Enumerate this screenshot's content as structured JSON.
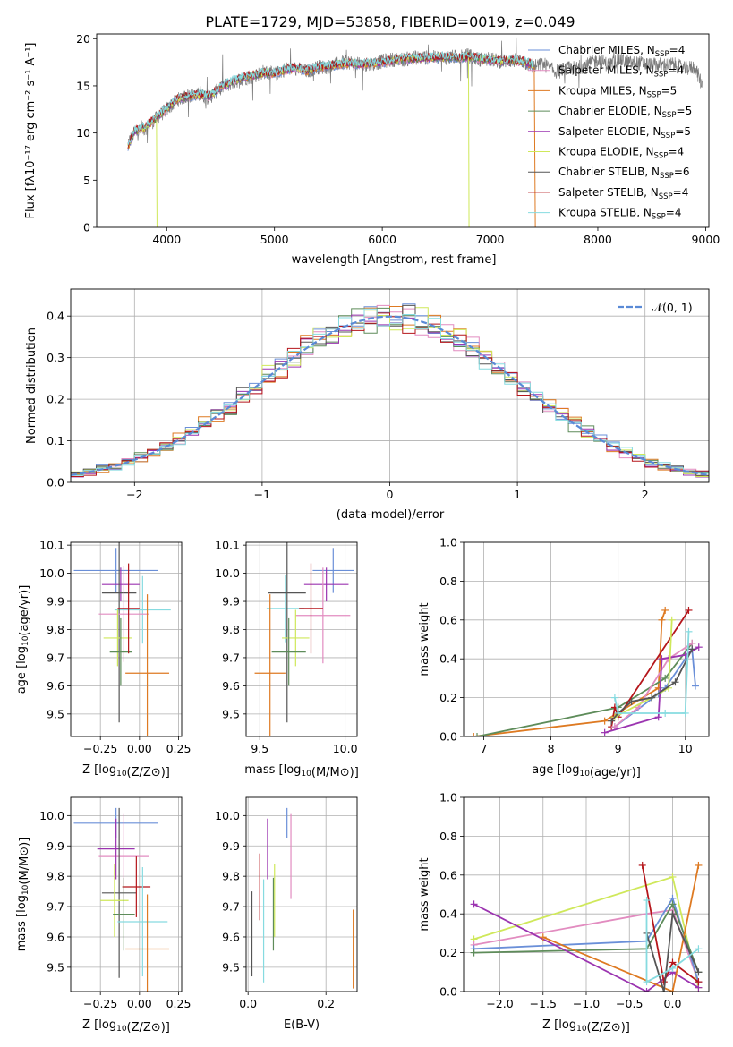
{
  "figure": {
    "title": "PLATE=1729, MJD=53858, FIBERID=0019, z=0.049"
  },
  "colors": {
    "Chabrier MILES": "#6a8fd8",
    "Salpeter MILES": "#e28cc0",
    "Kroupa MILES": "#de7a22",
    "Chabrier ELODIE": "#5e8c5a",
    "Salpeter ELODIE": "#9b34b0",
    "Kroupa ELODIE": "#cfe85a",
    "Chabrier STELIB": "#555555",
    "Salpeter STELIB": "#b5161b",
    "Kroupa STELIB": "#86dbe0"
  },
  "legend_entries": [
    {
      "model": "Chabrier MILES",
      "text": "Chabrier MILES, N",
      "sub": "SSP",
      "tail": "=4"
    },
    {
      "model": "Salpeter MILES",
      "text": "Salpeter MILES, N",
      "sub": "SSP",
      "tail": "=4"
    },
    {
      "model": "Kroupa MILES",
      "text": "Kroupa MILES, N",
      "sub": "SSP",
      "tail": "=5"
    },
    {
      "model": "Chabrier ELODIE",
      "text": "Chabrier ELODIE, N",
      "sub": "SSP",
      "tail": "=5"
    },
    {
      "model": "Salpeter ELODIE",
      "text": "Salpeter ELODIE, N",
      "sub": "SSP",
      "tail": "=5"
    },
    {
      "model": "Kroupa ELODIE",
      "text": "Kroupa ELODIE, N",
      "sub": "SSP",
      "tail": "=4"
    },
    {
      "model": "Chabrier STELIB",
      "text": "Chabrier STELIB, N",
      "sub": "SSP",
      "tail": "=6"
    },
    {
      "model": "Salpeter STELIB",
      "text": "Salpeter STELIB, N",
      "sub": "SSP",
      "tail": "=4"
    },
    {
      "model": "Kroupa STELIB",
      "text": "Kroupa STELIB, N",
      "sub": "SSP",
      "tail": "=4"
    }
  ],
  "chart_data": [
    {
      "id": "spectrum",
      "type": "line",
      "xlabel": "wavelength [Angstrom, rest frame]",
      "ylabel": "Flux [fλ10⁻¹⁷ erg cm⁻² s⁻¹ A⁻¹]",
      "xlim": [
        3350,
        9030
      ],
      "ylim": [
        0,
        20.5
      ],
      "xticks": [
        4000,
        5000,
        6000,
        7000,
        8000,
        9000
      ],
      "yticks": [
        0,
        5,
        10,
        15,
        20
      ],
      "grid": false,
      "legend_position": "top-right",
      "observed": {
        "name": "data",
        "x": [
          3640,
          3700,
          3800,
          3900,
          4000,
          4100,
          4200,
          4300,
          4400,
          4500,
          4600,
          4700,
          4800,
          4900,
          5000,
          5100,
          5200,
          5300,
          5400,
          5500,
          5600,
          5700,
          5800,
          5900,
          6000,
          6100,
          6200,
          6300,
          6400,
          6500,
          6600,
          6700,
          6800,
          6900,
          7000,
          7100,
          7200,
          7300,
          7400,
          7500,
          7600,
          7700,
          7800,
          7900,
          8000,
          8100,
          8200,
          8300,
          8400,
          8500,
          8600,
          8700,
          8800,
          8900,
          8970
        ],
        "y": [
          9.0,
          10.0,
          10.5,
          11.5,
          12.5,
          13.5,
          14.0,
          14.0,
          13.8,
          14.8,
          15.3,
          15.8,
          16.0,
          16.5,
          16.2,
          16.8,
          16.8,
          16.5,
          17.0,
          17.0,
          17.4,
          17.5,
          17.2,
          17.3,
          17.6,
          17.8,
          17.8,
          18.0,
          18.0,
          18.0,
          18.0,
          18.1,
          18.2,
          17.8,
          17.8,
          17.6,
          17.7,
          17.6,
          17.0,
          17.3,
          16.5,
          16.8,
          16.9,
          17.2,
          17.8,
          17.2,
          17.8,
          17.4,
          17.4,
          17.2,
          17.2,
          17.3,
          16.8,
          17.0,
          15.0
        ]
      },
      "model_spectrum": {
        "x": [
          3640,
          3700,
          3800,
          3900,
          4000,
          4100,
          4200,
          4300,
          4400,
          4500,
          4600,
          4700,
          4800,
          4900,
          5000,
          5100,
          5200,
          5300,
          5400,
          5500,
          5600,
          5700,
          5800,
          5900,
          6000,
          6100,
          6200,
          6300,
          6400,
          6500,
          6600,
          6700,
          6800,
          6900,
          7000,
          7100,
          7200,
          7300,
          7400
        ],
        "y": [
          8.5,
          10.2,
          10.6,
          11.6,
          12.6,
          13.6,
          13.9,
          14.1,
          13.9,
          14.9,
          15.4,
          15.9,
          16.1,
          16.4,
          16.3,
          16.7,
          16.9,
          16.6,
          17.0,
          17.1,
          17.3,
          17.4,
          17.3,
          17.4,
          17.5,
          17.7,
          17.9,
          17.9,
          18.0,
          18.0,
          18.1,
          18.0,
          18.1,
          17.9,
          17.8,
          17.6,
          17.7,
          17.6,
          17.2
        ]
      }
    },
    {
      "id": "residuals",
      "type": "histogram",
      "xlabel": "(data-model)/error",
      "ylabel": "Normed distribution",
      "xlim": [
        -2.5,
        2.5
      ],
      "ylim": [
        0,
        0.465
      ],
      "xticks": [
        -2,
        -1,
        0,
        1,
        2
      ],
      "yticks": [
        0.0,
        0.1,
        0.2,
        0.3,
        0.4
      ],
      "grid": true,
      "legend_position": "top-right",
      "legend": [
        "𝒩(0, 1)"
      ],
      "curve": {
        "name": "N(0,1)",
        "mean": 0,
        "sigma": 1
      },
      "bin_width": 0.1
    },
    {
      "id": "Z-age",
      "type": "errorbar",
      "xlabel": "Z [log10(Z/Z⊙)]",
      "ylabel": "age  [log10(age/yr)]",
      "xlim": [
        -0.44,
        0.27
      ],
      "ylim": [
        9.42,
        10.11
      ],
      "xticks": [
        -0.25,
        0.0,
        0.25
      ],
      "yticks": [
        9.5,
        9.6,
        9.7,
        9.8,
        9.9,
        10.0,
        10.1
      ],
      "grid": true,
      "points": [
        {
          "model": "Chabrier MILES",
          "x": -0.15,
          "xerr": 0.27,
          "y": 10.01,
          "yerr": 0.08
        },
        {
          "model": "Kroupa STELIB",
          "x": 0.02,
          "xerr": 0.18,
          "y": 9.87,
          "yerr": 0.12
        },
        {
          "model": "Salpeter ELODIE",
          "x": -0.12,
          "xerr": 0.12,
          "y": 9.96,
          "yerr": 0.06
        },
        {
          "model": "Chabrier STELIB",
          "x": -0.13,
          "xerr": 0.11,
          "y": 9.93,
          "yerr": 0.46
        },
        {
          "model": "Salpeter MILES",
          "x": -0.1,
          "xerr": 0.16,
          "y": 9.855,
          "yerr": 0.17
        },
        {
          "model": "Kroupa ELODIE",
          "x": -0.14,
          "xerr": 0.09,
          "y": 9.77,
          "yerr": 0.1
        },
        {
          "model": "Chabrier ELODIE",
          "x": -0.12,
          "xerr": 0.07,
          "y": 9.72,
          "yerr": 0.12
        },
        {
          "model": "Kroupa MILES",
          "x": 0.05,
          "xerr": 0.14,
          "y": 9.645,
          "yerr": 0.28
        },
        {
          "model": "Salpeter STELIB",
          "x": -0.07,
          "xerr": 0.07,
          "y": 9.875,
          "yerr": 0.16
        }
      ]
    },
    {
      "id": "mass-age",
      "type": "errorbar",
      "xlabel": "mass [log10(M/M⊙)]",
      "ylabel": "",
      "xlim": [
        9.42,
        10.07
      ],
      "ylim": [
        9.42,
        10.11
      ],
      "xticks": [
        9.5,
        10.0
      ],
      "yticks": [
        9.5,
        9.6,
        9.7,
        9.8,
        9.9,
        10.0,
        10.1
      ],
      "grid": true,
      "points": [
        {
          "model": "Chabrier MILES",
          "x": 9.93,
          "xerr": 0.12,
          "y": 10.01,
          "yerr": 0.08
        },
        {
          "model": "Kroupa STELIB",
          "x": 9.65,
          "xerr": 0.11,
          "y": 9.875,
          "yerr": 0.12
        },
        {
          "model": "Salpeter ELODIE",
          "x": 9.89,
          "xerr": 0.13,
          "y": 9.96,
          "yerr": 0.06
        },
        {
          "model": "Chabrier STELIB",
          "x": 9.66,
          "xerr": 0.11,
          "y": 9.93,
          "yerr": 0.46
        },
        {
          "model": "Salpeter MILES",
          "x": 9.87,
          "xerr": 0.16,
          "y": 9.85,
          "yerr": 0.17
        },
        {
          "model": "Kroupa ELODIE",
          "x": 9.71,
          "xerr": 0.08,
          "y": 9.77,
          "yerr": 0.1
        },
        {
          "model": "Chabrier ELODIE",
          "x": 9.67,
          "xerr": 0.1,
          "y": 9.72,
          "yerr": 0.12
        },
        {
          "model": "Kroupa MILES",
          "x": 9.56,
          "xerr": 0.09,
          "y": 9.645,
          "yerr": 0.28
        },
        {
          "model": "Salpeter STELIB",
          "x": 9.8,
          "xerr": 0.07,
          "y": 9.875,
          "yerr": 0.16
        }
      ]
    },
    {
      "id": "age-weight",
      "type": "line",
      "xlabel": "age  [log10(age/yr)]",
      "ylabel": "mass weight",
      "xlim": [
        6.7,
        10.35
      ],
      "ylim": [
        0.0,
        1.0
      ],
      "xticks": [
        7,
        8,
        9,
        10
      ],
      "yticks": [
        0.0,
        0.2,
        0.4,
        0.6,
        0.8,
        1.0
      ],
      "grid": true,
      "series": [
        {
          "model": "Kroupa MILES",
          "x": [
            6.85,
            8.8,
            9.6,
            9.65,
            9.7
          ],
          "y": [
            0.0,
            0.08,
            0.25,
            0.6,
            0.65
          ]
        },
        {
          "model": "Chabrier ELODIE",
          "x": [
            6.9,
            9.0,
            9.7,
            10.1
          ],
          "y": [
            0.0,
            0.15,
            0.3,
            0.48
          ]
        },
        {
          "model": "Salpeter STELIB",
          "x": [
            8.9,
            8.95,
            9.0,
            10.05
          ],
          "y": [
            0.05,
            0.15,
            0.1,
            0.65
          ]
        },
        {
          "model": "Chabrier MILES",
          "x": [
            8.95,
            9.6,
            9.7,
            10.1,
            10.15
          ],
          "y": [
            0.05,
            0.22,
            0.25,
            0.45,
            0.26
          ]
        },
        {
          "model": "Salpeter MILES",
          "x": [
            8.95,
            9.3,
            9.75,
            10.1
          ],
          "y": [
            0.05,
            0.15,
            0.4,
            0.48
          ]
        },
        {
          "model": "Salpeter ELODIE",
          "x": [
            8.8,
            9.6,
            9.65,
            10.0,
            10.2
          ],
          "y": [
            0.02,
            0.1,
            0.4,
            0.42,
            0.46
          ]
        },
        {
          "model": "Kroupa ELODIE",
          "x": [
            8.95,
            9.5,
            9.75,
            9.8
          ],
          "y": [
            0.1,
            0.2,
            0.25,
            0.6
          ]
        },
        {
          "model": "Chabrier STELIB",
          "x": [
            8.9,
            9.0,
            9.2,
            9.5,
            9.85,
            10.1
          ],
          "y": [
            0.08,
            0.12,
            0.18,
            0.2,
            0.28,
            0.45
          ]
        },
        {
          "model": "Kroupa STELIB",
          "x": [
            8.95,
            9.0,
            9.7,
            10.0,
            10.05
          ],
          "y": [
            0.2,
            0.12,
            0.12,
            0.12,
            0.54
          ]
        }
      ]
    },
    {
      "id": "Z-mass",
      "type": "errorbar",
      "xlabel": "Z [log10(Z/Z⊙)]",
      "ylabel": "mass [log10(M/M⊙)]",
      "xlim": [
        -0.44,
        0.27
      ],
      "ylim": [
        9.42,
        10.06
      ],
      "xticks": [
        -0.25,
        0.0,
        0.25
      ],
      "yticks": [
        9.5,
        9.6,
        9.7,
        9.8,
        9.9,
        10.0
      ],
      "grid": true,
      "points": [
        {
          "model": "Chabrier MILES",
          "x": -0.15,
          "xerr": 0.27,
          "y": 9.975,
          "yerr": 0.05
        },
        {
          "model": "Salpeter MILES",
          "x": -0.1,
          "xerr": 0.16,
          "y": 9.865,
          "yerr": 0.14
        },
        {
          "model": "Salpeter ELODIE",
          "x": -0.15,
          "xerr": 0.12,
          "y": 9.89,
          "yerr": 0.1
        },
        {
          "model": "Chabrier STELIB",
          "x": -0.13,
          "xerr": 0.11,
          "y": 9.745,
          "yerr": 0.28
        },
        {
          "model": "Salpeter STELIB",
          "x": -0.02,
          "xerr": 0.09,
          "y": 9.765,
          "yerr": 0.1
        },
        {
          "model": "Kroupa ELODIE",
          "x": -0.16,
          "xerr": 0.09,
          "y": 9.72,
          "yerr": 0.12
        },
        {
          "model": "Chabrier ELODIE",
          "x": -0.1,
          "xerr": 0.07,
          "y": 9.675,
          "yerr": 0.12
        },
        {
          "model": "Kroupa STELIB",
          "x": 0.02,
          "xerr": 0.16,
          "y": 9.65,
          "yerr": 0.18
        },
        {
          "model": "Kroupa MILES",
          "x": 0.05,
          "xerr": 0.14,
          "y": 9.56,
          "yerr": 0.18
        }
      ]
    },
    {
      "id": "ebv-mass",
      "type": "errorbar",
      "xlabel": "E(B-V)",
      "ylabel": "",
      "xlim": [
        -0.005,
        0.28
      ],
      "ylim": [
        9.42,
        10.06
      ],
      "xticks": [
        0.0,
        0.2
      ],
      "yticks": [
        9.5,
        9.6,
        9.7,
        9.8,
        9.9,
        10.0
      ],
      "grid": true,
      "points": [
        {
          "model": "Chabrier MILES",
          "x": 0.1,
          "y": 9.975,
          "yerr": 0.05
        },
        {
          "model": "Salpeter MILES",
          "x": 0.11,
          "y": 9.865,
          "yerr": 0.14
        },
        {
          "model": "Salpeter ELODIE",
          "x": 0.05,
          "y": 9.89,
          "yerr": 0.1
        },
        {
          "model": "Chabrier STELIB",
          "x": 0.01,
          "y": 9.61,
          "yerr": 0.14
        },
        {
          "model": "Salpeter STELIB",
          "x": 0.03,
          "y": 9.765,
          "yerr": 0.11
        },
        {
          "model": "Kroupa ELODIE",
          "x": 0.068,
          "y": 9.72,
          "yerr": 0.12
        },
        {
          "model": "Chabrier ELODIE",
          "x": 0.065,
          "y": 9.675,
          "yerr": 0.12
        },
        {
          "model": "Kroupa STELIB",
          "x": 0.04,
          "y": 9.62,
          "yerr": 0.17
        },
        {
          "model": "Kroupa MILES",
          "x": 0.27,
          "y": 9.56,
          "yerr": 0.13
        }
      ]
    },
    {
      "id": "Z-weight",
      "type": "line",
      "xlabel": "Z [log10(Z/Z⊙)]",
      "ylabel": "mass weight",
      "xlim": [
        -2.42,
        0.42
      ],
      "ylim": [
        0.0,
        1.0
      ],
      "xticks": [
        -2.0,
        -1.5,
        -1.0,
        -0.5,
        0.0
      ],
      "yticks": [
        0.0,
        0.2,
        0.4,
        0.6,
        0.8,
        1.0
      ],
      "grid": true,
      "series": [
        {
          "model": "Kroupa ELODIE",
          "x": [
            -2.3,
            0.0,
            0.3
          ],
          "y": [
            0.27,
            0.59,
            0.02
          ]
        },
        {
          "model": "Salpeter MILES",
          "x": [
            -2.3,
            -0.3,
            0.0,
            0.3
          ],
          "y": [
            0.24,
            0.4,
            0.42,
            0.05
          ]
        },
        {
          "model": "Chabrier MILES",
          "x": [
            -2.3,
            -0.3,
            0.0,
            0.3
          ],
          "y": [
            0.22,
            0.26,
            0.48,
            0.05
          ]
        },
        {
          "model": "Chabrier ELODIE",
          "x": [
            -2.3,
            -0.3,
            0.0,
            0.3
          ],
          "y": [
            0.2,
            0.22,
            0.45,
            0.1
          ]
        },
        {
          "model": "Salpeter ELODIE",
          "x": [
            -2.3,
            -0.3,
            0.0,
            0.3
          ],
          "y": [
            0.45,
            0.0,
            0.1,
            0.02
          ]
        },
        {
          "model": "Kroupa MILES",
          "x": [
            -1.5,
            0.0,
            0.3
          ],
          "y": [
            0.28,
            0.0,
            0.65
          ]
        },
        {
          "model": "Salpeter STELIB",
          "x": [
            -0.35,
            -0.1,
            0.0,
            0.3
          ],
          "y": [
            0.65,
            0.05,
            0.15,
            0.05
          ]
        },
        {
          "model": "Chabrier STELIB",
          "x": [
            -0.3,
            -0.1,
            0.0,
            0.3
          ],
          "y": [
            0.3,
            0.0,
            0.4,
            0.1
          ]
        },
        {
          "model": "Kroupa STELIB",
          "x": [
            -0.3,
            -0.3,
            0.0,
            0.3
          ],
          "y": [
            0.47,
            0.05,
            0.12,
            0.22
          ]
        }
      ]
    }
  ]
}
